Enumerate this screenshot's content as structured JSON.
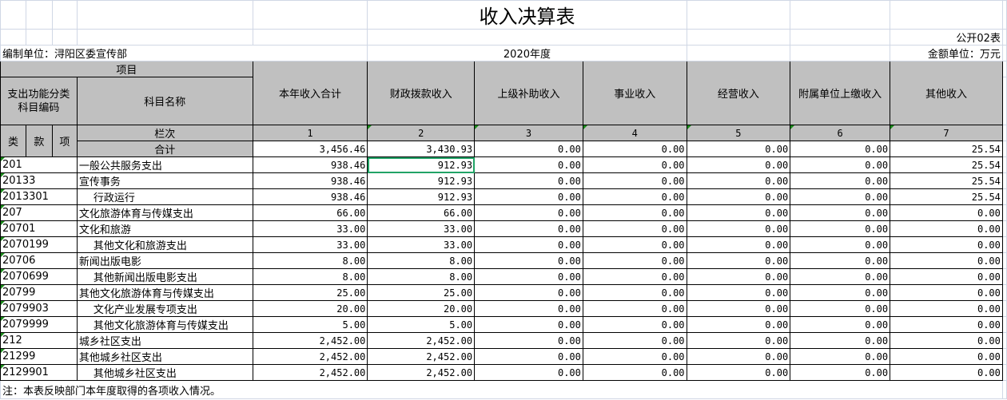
{
  "title": "收入决算表",
  "form_no": "公开02表",
  "unit": "编制单位：浔阳区委宣传部",
  "year": "2020年度",
  "currency": "金额单位：万元",
  "header": {
    "item": "项目",
    "code": "支出功能分类科目编码",
    "name": "科目名称",
    "lei": "类",
    "kuan": "款",
    "xiang": "项",
    "lanci": "栏次",
    "total": "合计",
    "columns": [
      "本年收入合计",
      "财政拨款收入",
      "上级补助收入",
      "事业收入",
      "经营收入",
      "附属单位上缴收入",
      "其他收入"
    ],
    "col_nums": [
      "1",
      "2",
      "3",
      "4",
      "5",
      "6",
      "7"
    ]
  },
  "total_values": [
    "3,456.46",
    "3,430.93",
    "0.00",
    "0.00",
    "0.00",
    "0.00",
    "25.54"
  ],
  "rows": [
    {
      "code": "201",
      "name": "一般公共服务支出",
      "indent": false,
      "v": [
        "938.46",
        "912.93",
        "0.00",
        "0.00",
        "0.00",
        "0.00",
        "25.54"
      ]
    },
    {
      "code": "20133",
      "name": "宣传事务",
      "indent": false,
      "v": [
        "938.46",
        "912.93",
        "0.00",
        "0.00",
        "0.00",
        "0.00",
        "25.54"
      ]
    },
    {
      "code": "2013301",
      "name": "行政运行",
      "indent": true,
      "v": [
        "938.46",
        "912.93",
        "0.00",
        "0.00",
        "0.00",
        "0.00",
        "25.54"
      ]
    },
    {
      "code": "207",
      "name": "文化旅游体育与传媒支出",
      "indent": false,
      "v": [
        "66.00",
        "66.00",
        "0.00",
        "0.00",
        "0.00",
        "0.00",
        "0.00"
      ]
    },
    {
      "code": "20701",
      "name": "文化和旅游",
      "indent": false,
      "v": [
        "33.00",
        "33.00",
        "0.00",
        "0.00",
        "0.00",
        "0.00",
        "0.00"
      ]
    },
    {
      "code": "2070199",
      "name": "其他文化和旅游支出",
      "indent": true,
      "v": [
        "33.00",
        "33.00",
        "0.00",
        "0.00",
        "0.00",
        "0.00",
        "0.00"
      ]
    },
    {
      "code": "20706",
      "name": "新闻出版电影",
      "indent": false,
      "v": [
        "8.00",
        "8.00",
        "0.00",
        "0.00",
        "0.00",
        "0.00",
        "0.00"
      ]
    },
    {
      "code": "2070699",
      "name": "其他新闻出版电影支出",
      "indent": true,
      "v": [
        "8.00",
        "8.00",
        "0.00",
        "0.00",
        "0.00",
        "0.00",
        "0.00"
      ]
    },
    {
      "code": "20799",
      "name": "其他文化旅游体育与传媒支出",
      "indent": false,
      "v": [
        "25.00",
        "25.00",
        "0.00",
        "0.00",
        "0.00",
        "0.00",
        "0.00"
      ]
    },
    {
      "code": "2079903",
      "name": "文化产业发展专项支出",
      "indent": true,
      "v": [
        "20.00",
        "20.00",
        "0.00",
        "0.00",
        "0.00",
        "0.00",
        "0.00"
      ]
    },
    {
      "code": "2079999",
      "name": "其他文化旅游体育与传媒支出",
      "indent": true,
      "v": [
        "5.00",
        "5.00",
        "0.00",
        "0.00",
        "0.00",
        "0.00",
        "0.00"
      ]
    },
    {
      "code": "212",
      "name": "城乡社区支出",
      "indent": false,
      "v": [
        "2,452.00",
        "2,452.00",
        "0.00",
        "0.00",
        "0.00",
        "0.00",
        "0.00"
      ]
    },
    {
      "code": "21299",
      "name": "其他城乡社区支出",
      "indent": false,
      "v": [
        "2,452.00",
        "2,452.00",
        "0.00",
        "0.00",
        "0.00",
        "0.00",
        "0.00"
      ]
    },
    {
      "code": "2129901",
      "name": "其他城乡社区支出",
      "indent": true,
      "v": [
        "2,452.00",
        "2,452.00",
        "0.00",
        "0.00",
        "0.00",
        "0.00",
        "0.00"
      ]
    }
  ],
  "note": "注：本表反映部门本年度取得的各项收入情况。",
  "colors": {
    "header_bg": "#c0c0c0",
    "grid": "#d0d7e5",
    "selection": "#21a366"
  }
}
